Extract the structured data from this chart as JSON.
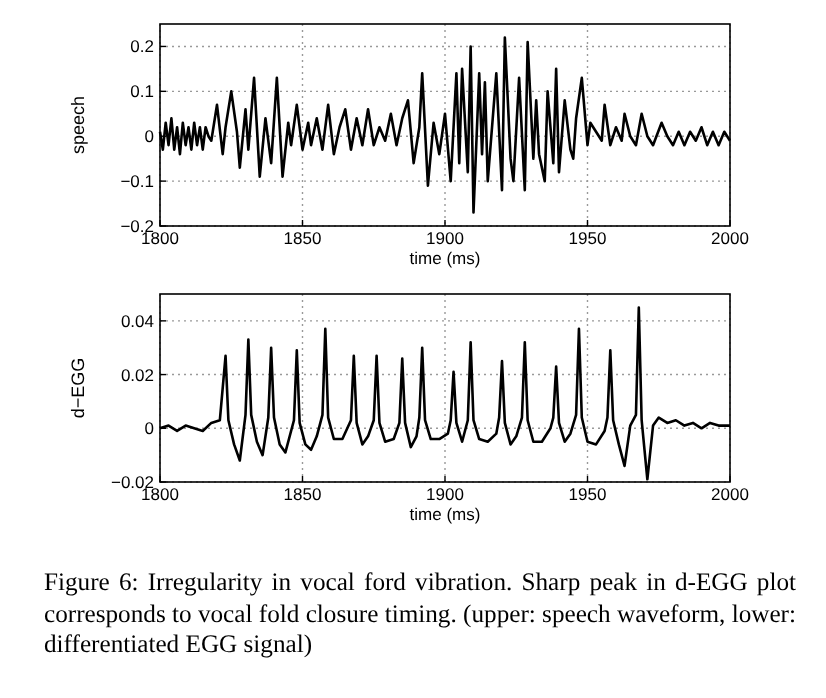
{
  "chart_data": [
    {
      "type": "line",
      "ylabel": "speech",
      "xlabel": "time (ms)",
      "xlim": [
        1800,
        2000
      ],
      "xticks": [
        1800,
        1850,
        1900,
        1950,
        2000
      ],
      "ylim": [
        -0.2,
        0.25
      ],
      "yticks": [
        {
          "value": -0.2,
          "label": "−0.2"
        },
        {
          "value": -0.1,
          "label": "−0.1"
        },
        0,
        0.1,
        0.2
      ],
      "grid": true,
      "series": [
        {
          "color": "#000000",
          "x": [
            1800,
            1801,
            1802,
            1803,
            1804,
            1805,
            1806,
            1807,
            1808,
            1809,
            1810,
            1811,
            1812,
            1813,
            1814,
            1815,
            1816,
            1817,
            1818,
            1820,
            1822,
            1823,
            1825,
            1827,
            1828,
            1830,
            1831,
            1833,
            1835,
            1837,
            1839,
            1841,
            1843,
            1845,
            1846,
            1848,
            1850,
            1852,
            1853,
            1855,
            1857,
            1859,
            1861,
            1863,
            1865,
            1867,
            1869,
            1871,
            1873,
            1875,
            1877,
            1879,
            1881,
            1883,
            1885,
            1887,
            1889,
            1891,
            1892,
            1894,
            1896,
            1898,
            1900,
            1902,
            1904,
            1905,
            1906,
            1908,
            1909,
            1910,
            1912,
            1913,
            1914,
            1915,
            1917,
            1918,
            1920,
            1921,
            1923,
            1924,
            1926,
            1928,
            1929,
            1931,
            1932,
            1933,
            1935,
            1936,
            1938,
            1939,
            1940,
            1942,
            1944,
            1945,
            1946,
            1948,
            1950,
            1951,
            1953,
            1955,
            1956,
            1958,
            1960,
            1962,
            1963,
            1965,
            1967,
            1969,
            1971,
            1973,
            1976,
            1978,
            1980,
            1982,
            1984,
            1986,
            1988,
            1990,
            1992,
            1994,
            1996,
            1998,
            2000
          ],
          "values": [
            0.01,
            -0.03,
            0.03,
            -0.02,
            0.04,
            -0.03,
            0.02,
            -0.04,
            0.03,
            -0.02,
            0.02,
            -0.03,
            0.03,
            -0.02,
            0.02,
            -0.03,
            0.02,
            0,
            -0.01,
            0.07,
            -0.04,
            0.02,
            0.1,
            0.01,
            -0.07,
            0.06,
            -0.03,
            0.13,
            -0.09,
            0.04,
            -0.06,
            0.13,
            -0.09,
            0.03,
            -0.02,
            0.07,
            -0.03,
            0.03,
            -0.02,
            0.04,
            -0.03,
            0.07,
            -0.04,
            0.02,
            0.06,
            -0.03,
            0.04,
            -0.02,
            0.06,
            -0.02,
            0.02,
            -0.01,
            0.05,
            -0.02,
            0.04,
            0.08,
            -0.06,
            0.02,
            0.14,
            -0.11,
            0.03,
            -0.04,
            0.05,
            -0.1,
            0.14,
            -0.06,
            0.15,
            -0.08,
            0.2,
            -0.17,
            0.14,
            -0.04,
            0.12,
            -0.1,
            0.06,
            0.14,
            -0.12,
            0.22,
            -0.05,
            -0.1,
            0.13,
            -0.12,
            0.21,
            -0.05,
            0.08,
            -0.04,
            -0.1,
            0.1,
            -0.06,
            0.15,
            -0.08,
            0.08,
            -0.03,
            -0.05,
            0.04,
            0.13,
            -0.02,
            0.03,
            0.01,
            -0.01,
            0.07,
            -0.02,
            0.02,
            -0.01,
            0.05,
            0,
            -0.02,
            0.05,
            0,
            -0.02,
            0.03,
            0,
            -0.02,
            0.01,
            -0.02,
            0.01,
            -0.01,
            0.02,
            -0.02,
            0.01,
            -0.02,
            0.01,
            -0.01
          ]
        }
      ]
    },
    {
      "type": "line",
      "ylabel": "d−EGG",
      "xlabel": "time (ms)",
      "xlim": [
        1800,
        2000
      ],
      "xticks": [
        1800,
        1850,
        1900,
        1950,
        2000
      ],
      "ylim": [
        -0.02,
        0.05
      ],
      "yticks": [
        {
          "value": -0.02,
          "label": "−0.02"
        },
        0,
        0.02,
        0.04
      ],
      "grid": true,
      "annotations": [
        "Figure 6: Irregularity in vocal ford vibration. Sharp peak in d-EGG plot corresponds to vocal fold closure timing. (upper: speech waveform, lower: differentiated EGG signal)"
      ],
      "series": [
        {
          "color": "#000000",
          "x": [
            1800,
            1803,
            1806,
            1809,
            1812,
            1815,
            1818,
            1821,
            1823,
            1824,
            1826,
            1828,
            1830,
            1831,
            1832,
            1834,
            1836,
            1838,
            1839,
            1840,
            1842,
            1844,
            1847,
            1848,
            1849,
            1851,
            1853,
            1855,
            1857,
            1858,
            1859,
            1861,
            1864,
            1867,
            1868,
            1869,
            1871,
            1873,
            1875,
            1876,
            1877,
            1879,
            1882,
            1884,
            1885,
            1886,
            1888,
            1890,
            1891,
            1892,
            1893,
            1895,
            1898,
            1901,
            1902,
            1903,
            1904,
            1906,
            1908,
            1909,
            1910,
            1912,
            1915,
            1918,
            1919,
            1920,
            1921,
            1923,
            1925,
            1927,
            1928,
            1929,
            1931,
            1934,
            1937,
            1938,
            1939,
            1940,
            1942,
            1944,
            1946,
            1947,
            1948,
            1950,
            1953,
            1956,
            1957,
            1958,
            1959,
            1961,
            1963,
            1965,
            1967,
            1968,
            1969,
            1970,
            1971,
            1973,
            1975,
            1978,
            1981,
            1984,
            1987,
            1990,
            1993,
            1996,
            2000
          ],
          "values": [
            0,
            0.001,
            -0.001,
            0.001,
            0,
            -0.001,
            0.002,
            0.003,
            0.027,
            0.003,
            -0.006,
            -0.012,
            0.005,
            0.033,
            0.005,
            -0.005,
            -0.01,
            0.004,
            0.03,
            0.004,
            -0.006,
            -0.009,
            0.003,
            0.029,
            0.002,
            -0.006,
            -0.008,
            -0.003,
            0.005,
            0.037,
            0.004,
            -0.004,
            -0.004,
            0.003,
            0.027,
            0.002,
            -0.006,
            -0.003,
            0.003,
            0.027,
            0.002,
            -0.005,
            -0.004,
            0.002,
            0.026,
            0.002,
            -0.007,
            -0.003,
            0.004,
            0.03,
            0.003,
            -0.004,
            -0.004,
            -0.002,
            0.003,
            0.021,
            0.002,
            -0.005,
            0.003,
            0.032,
            0.003,
            -0.004,
            -0.005,
            -0.002,
            0.004,
            0.025,
            0.002,
            -0.006,
            -0.003,
            0.004,
            0.032,
            0.003,
            -0.005,
            -0.005,
            0,
            0.004,
            0.023,
            0.002,
            -0.005,
            -0.002,
            0.005,
            0.037,
            0.004,
            -0.005,
            -0.006,
            -0.001,
            0.004,
            0.029,
            0.003,
            -0.006,
            -0.014,
            0.001,
            0.005,
            0.045,
            0.003,
            -0.008,
            -0.019,
            0.001,
            0.004,
            0.002,
            0.003,
            0.001,
            0.002,
            0,
            0.002,
            0.001,
            0.001
          ]
        }
      ]
    }
  ]
}
